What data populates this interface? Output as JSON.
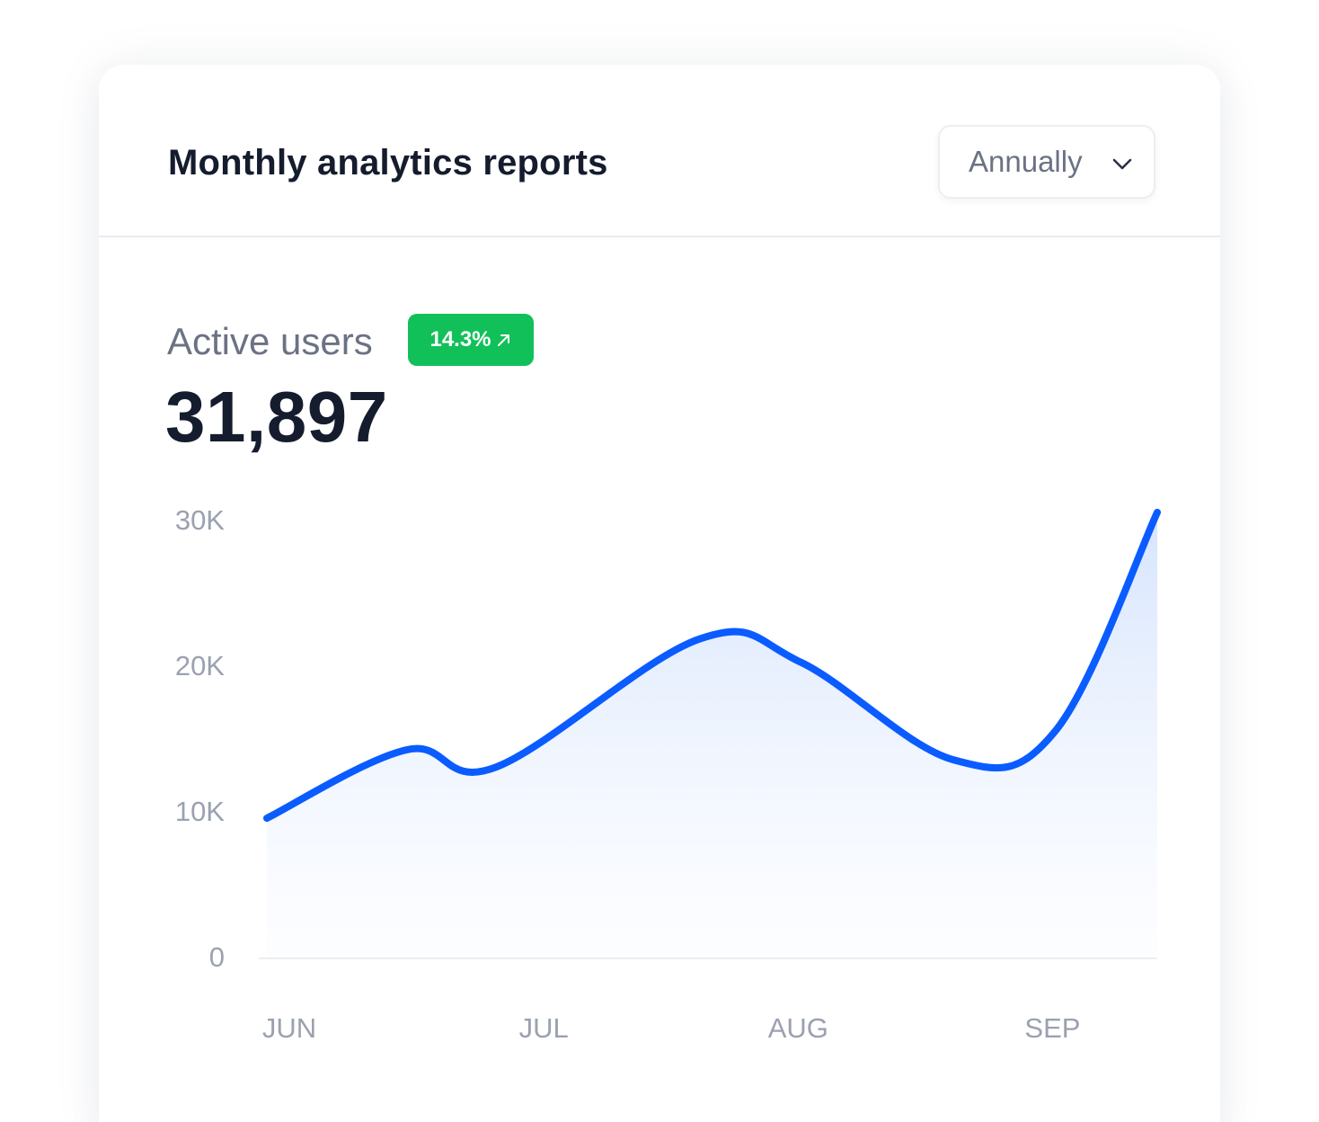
{
  "card": {
    "title": "Monthly analytics reports"
  },
  "period_select": {
    "selected": "Annually",
    "icon": "chevron-down-icon"
  },
  "metric": {
    "label": "Active users",
    "value": "31,897",
    "change": "14.3%",
    "change_icon": "arrow-up-right-icon"
  },
  "colors": {
    "line": "#0a5cff",
    "fill_top": "#d6e4fd",
    "badge": "#12c05a",
    "title": "#141c2e",
    "muted": "#6b7284",
    "tick": "#9aa1b0"
  },
  "chart_data": {
    "type": "area",
    "title": "",
    "xlabel": "",
    "ylabel": "",
    "x_tick_labels": [
      "JUN",
      "JUL",
      "AUG",
      "SEP"
    ],
    "y_tick_labels": [
      "30K",
      "20K",
      "10K",
      "0"
    ],
    "y_ticks": [
      30000,
      20000,
      10000,
      0
    ],
    "ylim": [
      0,
      30000
    ],
    "xlim": [
      0,
      3.5
    ],
    "grid": false,
    "legend": "none",
    "series": [
      {
        "points": [
          {
            "x": 0.0,
            "y": 9500
          },
          {
            "x": 0.55,
            "y": 14200
          },
          {
            "x": 0.9,
            "y": 13000
          },
          {
            "x": 1.7,
            "y": 21800
          },
          {
            "x": 2.1,
            "y": 20200
          },
          {
            "x": 2.7,
            "y": 13500
          },
          {
            "x": 3.1,
            "y": 15500
          },
          {
            "x": 3.5,
            "y": 30500
          }
        ]
      }
    ]
  }
}
